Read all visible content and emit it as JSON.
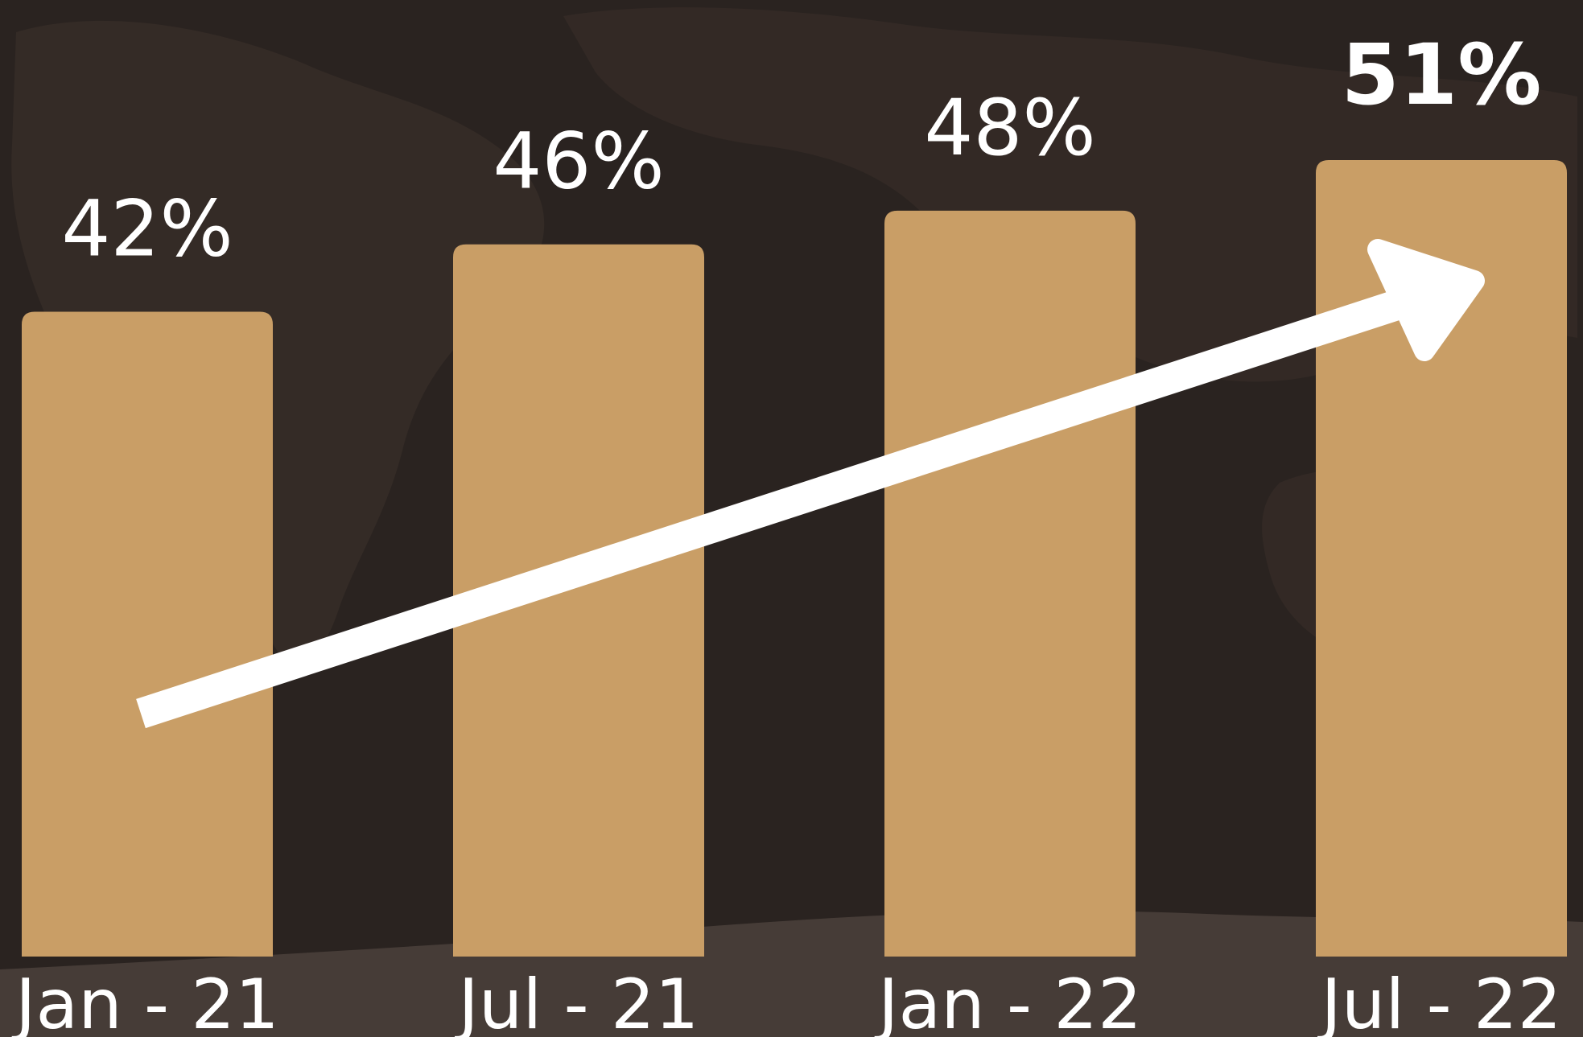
{
  "colors": {
    "background": "#2a2320",
    "map_shade": "#3a302a",
    "bar": "#c99e66",
    "text": "#ffffff",
    "arrow": "#ffffff"
  },
  "chart_data": {
    "type": "bar",
    "categories": [
      "Jan - 21",
      "Jul - 21",
      "Jan - 22",
      "Jul - 22"
    ],
    "values": [
      42,
      46,
      48,
      51
    ],
    "value_labels": [
      "42%",
      "46%",
      "48%",
      "51%"
    ],
    "highlighted_index": 3,
    "unit": "%",
    "ylim": [
      0,
      51
    ],
    "grid": false,
    "legend": "none",
    "trend_arrow": {
      "direction": "up",
      "from_category": 0,
      "to_category": 3
    }
  }
}
